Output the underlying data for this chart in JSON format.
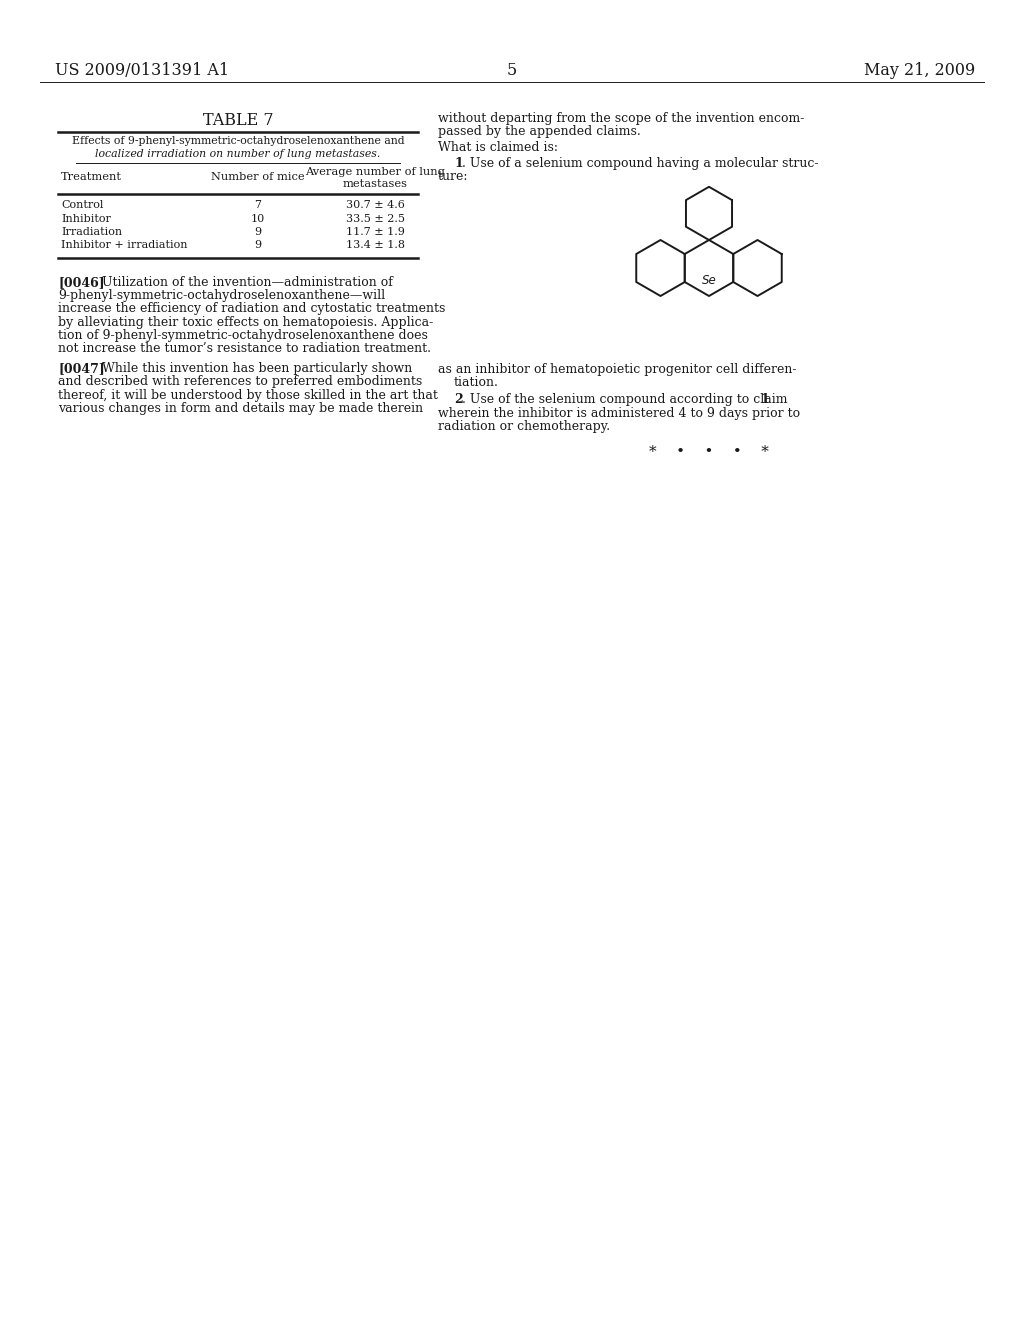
{
  "background_color": "#ffffff",
  "page_number": "5",
  "header_left": "US 2009/0131391 A1",
  "header_right": "May 21, 2009",
  "table_title": "TABLE 7",
  "table_subtitle_line1": "Effects of 9-phenyl-symmetric-octahydroselenoxanthene and",
  "table_subtitle_line2": "localized irradiation on number of lung metastases.",
  "col_h1": "Treatment",
  "col_h2": "Number of mice",
  "col_h3a": "Average number of lung",
  "col_h3b": "metastases",
  "table_rows": [
    [
      "Control",
      "7",
      "30.7 ± 4.6"
    ],
    [
      "Inhibitor",
      "10",
      "33.5 ± 2.5"
    ],
    [
      "Irradiation",
      "9",
      "11.7 ± 1.9"
    ],
    [
      "Inhibitor + irradiation",
      "9",
      "13.4 ± 1.8"
    ]
  ],
  "para1_label": "[0046]",
  "para1_lines": [
    "Utilization of the invention—administration of",
    "9-phenyl-symmetric-octahydroselenoxanthene—will",
    "increase the efficiency of radiation and cytostatic treatments",
    "by alleviating their toxic effects on hematopoiesis. Applica-",
    "tion of 9-phenyl-symmetric-octahydroselenoxanthene does",
    "not increase the tumor’s resistance to radiation treatment."
  ],
  "para2_label": "[0047]",
  "para2_lines": [
    "While this invention has been particularly shown",
    "and described with references to preferred embodiments",
    "thereof, it will be understood by those skilled in the art that",
    "various changes in form and details may be made therein"
  ],
  "rc_line1": "without departing from the scope of the invention encom-",
  "rc_line2": "passed by the appended claims.",
  "rc_line3": "What is claimed is:",
  "rc_claim1a": "      1 . Use of a selenium compound having a molecular struc-",
  "rc_claim1b": "ture:",
  "rc_as_inhibitor1": "as an inhibitor of hematopoietic progenitor cell differen-",
  "rc_as_inhibitor2": "tiation.",
  "rc_claim2a": "      2 . Use of the selenium compound according to claim 1,",
  "rc_claim2b": "wherein the inhibitor is administered 4 to 9 days prior to",
  "rc_claim2c": "radiation or chemotherapy.",
  "stars_text": "*    •    •    •    *",
  "font_color": "#1a1a1a",
  "font_color_light": "#333333"
}
